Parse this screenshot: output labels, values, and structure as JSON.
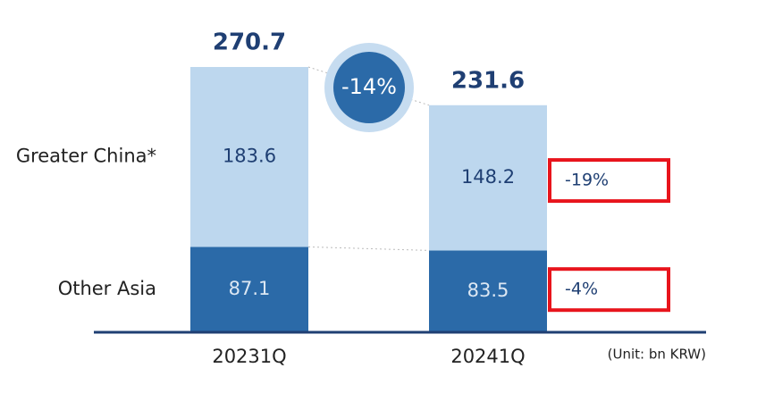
{
  "chart_data": {
    "type": "stacked_bar",
    "categories": [
      "20231Q",
      "20241Q"
    ],
    "series": [
      {
        "name": "Other Asia",
        "color": "#2b6aa8",
        "values": [
          87.1,
          83.5
        ]
      },
      {
        "name": "Greater China*",
        "color": "#bdd7ee",
        "values": [
          183.6,
          148.2
        ]
      }
    ],
    "totals": [
      270.7,
      231.6
    ],
    "total_change": {
      "value": -14,
      "label": "-14%"
    },
    "series_changes": [
      {
        "value": -4,
        "label": "-4%"
      },
      {
        "value": -19,
        "label": "-19%"
      }
    ],
    "unit_note": "(Unit: bn KRW)"
  }
}
